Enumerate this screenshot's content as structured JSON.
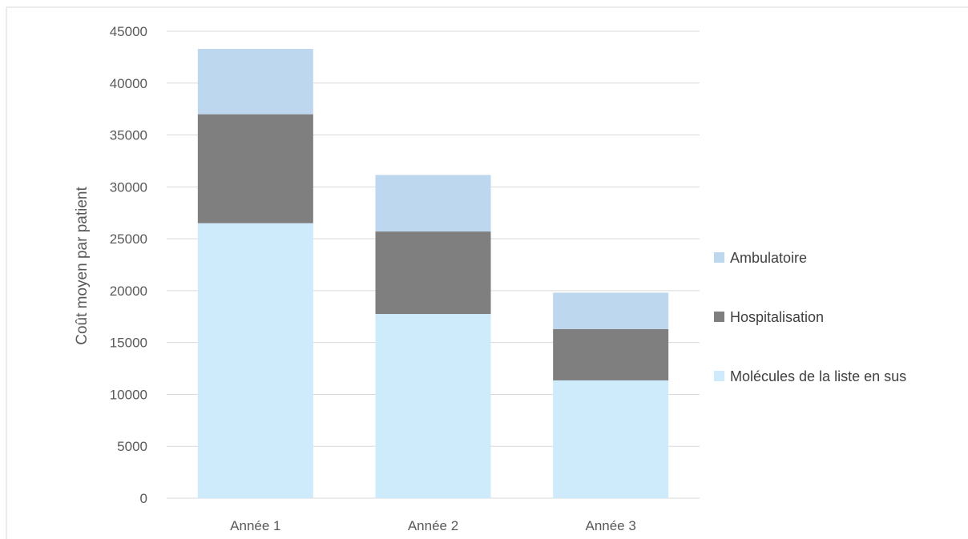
{
  "chart_data": {
    "type": "bar",
    "stacked": true,
    "title": "",
    "xlabel": "",
    "ylabel": "Coût moyen par patient",
    "ylim": [
      0,
      45000
    ],
    "yticks": [
      0,
      5000,
      10000,
      15000,
      20000,
      25000,
      30000,
      35000,
      40000,
      45000
    ],
    "grid": true,
    "legend_position": "right",
    "categories": [
      "Année 1",
      "Année 2",
      "Année 3"
    ],
    "series": [
      {
        "name": "Molécules de la liste en sus",
        "color": "#CDEBFB",
        "values": [
          26500,
          17750,
          11350
        ]
      },
      {
        "name": "Hospitalisation",
        "color": "#7F7F7F",
        "values": [
          10500,
          7950,
          4950
        ]
      },
      {
        "name": "Ambulatoire",
        "color": "#BDD7EE",
        "values": [
          6300,
          5450,
          3500
        ]
      }
    ],
    "legend_order": [
      "Ambulatoire",
      "Hospitalisation",
      "Molécules de la liste en sus"
    ]
  }
}
